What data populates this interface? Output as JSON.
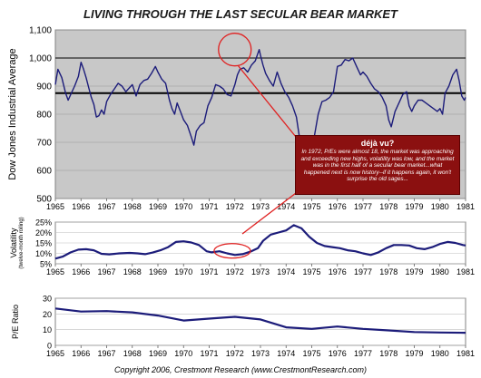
{
  "title": "LIVING THROUGH THE LAST SECULAR BEAR MARKET",
  "copyright": "Copyright 2006, Crestmont Research (www.CrestmontResearch.com)",
  "callout": {
    "heading": "déjà vu?",
    "body": "In 1972, P/Es were almost 18, the market was approaching and exceeding new highs, volatility was low, and the market was in the first half of a secular bear market...what happened next is now history--if it happens again, it won't surprise the old sages..."
  },
  "colors": {
    "line": "#1c1c7a",
    "highlight": "#e02020",
    "plot_bg": "#c8c8c8",
    "callout_bg": "#8b1010"
  },
  "chart_data": [
    {
      "type": "line",
      "title": "LIVING THROUGH THE LAST SECULAR BEAR MARKET",
      "ylabel": "Dow Jones Industrial Average",
      "xlim": [
        1965,
        1981
      ],
      "ylim": [
        500,
        1100
      ],
      "yticks": [
        "500",
        "600",
        "700",
        "800",
        "900",
        "1,000",
        "1,100"
      ],
      "xticks": [
        "1965",
        "1966",
        "1967",
        "1968",
        "1969",
        "1970",
        "1971",
        "1972",
        "1973",
        "1974",
        "1975",
        "1976",
        "1977",
        "1978",
        "1979",
        "1980",
        "1981"
      ],
      "reference_lines": [
        1000,
        875
      ],
      "grid": true,
      "highlight_circle_center": [
        1972.0,
        1030
      ],
      "x": [
        1965.0,
        1965.1,
        1965.25,
        1965.4,
        1965.5,
        1965.6,
        1965.75,
        1965.9,
        1966.0,
        1966.1,
        1966.2,
        1966.3,
        1966.4,
        1966.5,
        1966.6,
        1966.7,
        1966.8,
        1966.9,
        1967.0,
        1967.15,
        1967.3,
        1967.45,
        1967.6,
        1967.75,
        1967.9,
        1968.0,
        1968.15,
        1968.3,
        1968.45,
        1968.6,
        1968.75,
        1968.9,
        1969.0,
        1969.15,
        1969.3,
        1969.45,
        1969.55,
        1969.65,
        1969.75,
        1969.9,
        1970.0,
        1970.15,
        1970.3,
        1970.4,
        1970.5,
        1970.65,
        1970.8,
        1970.95,
        1971.1,
        1971.25,
        1971.4,
        1971.55,
        1971.7,
        1971.85,
        1972.0,
        1972.1,
        1972.2,
        1972.35,
        1972.5,
        1972.65,
        1972.8,
        1972.95,
        1973.0,
        1973.1,
        1973.2,
        1973.35,
        1973.5,
        1973.65,
        1973.8,
        1973.95,
        1974.1,
        1974.25,
        1974.4,
        1974.55,
        1974.7,
        1974.8,
        1974.9,
        1975.0,
        1975.1,
        1975.25,
        1975.4,
        1975.55,
        1975.7,
        1975.85,
        1976.0,
        1976.15,
        1976.3,
        1976.45,
        1976.6,
        1976.75,
        1976.9,
        1977.0,
        1977.15,
        1977.3,
        1977.45,
        1977.6,
        1977.75,
        1977.9,
        1978.0,
        1978.1,
        1978.25,
        1978.4,
        1978.55,
        1978.7,
        1978.8,
        1978.9,
        1979.0,
        1979.15,
        1979.3,
        1979.45,
        1979.6,
        1979.75,
        1979.9,
        1980.0,
        1980.1,
        1980.2,
        1980.35,
        1980.5,
        1980.65,
        1980.75,
        1980.85,
        1980.95,
        1981.0
      ],
      "y": [
        905,
        960,
        930,
        875,
        850,
        870,
        900,
        935,
        985,
        960,
        930,
        895,
        860,
        835,
        790,
        795,
        815,
        800,
        845,
        870,
        890,
        910,
        900,
        880,
        895,
        905,
        865,
        905,
        920,
        925,
        945,
        970,
        950,
        925,
        910,
        850,
        820,
        800,
        840,
        805,
        780,
        760,
        720,
        690,
        740,
        760,
        770,
        830,
        860,
        905,
        900,
        890,
        870,
        865,
        905,
        940,
        960,
        965,
        950,
        975,
        990,
        1030,
        1010,
        975,
        945,
        920,
        900,
        950,
        910,
        880,
        860,
        830,
        790,
        700,
        630,
        610,
        660,
        680,
        720,
        800,
        845,
        850,
        860,
        880,
        970,
        975,
        995,
        990,
        1000,
        970,
        940,
        950,
        935,
        910,
        890,
        880,
        860,
        830,
        780,
        755,
        810,
        840,
        870,
        880,
        830,
        810,
        830,
        850,
        850,
        840,
        830,
        820,
        810,
        820,
        800,
        875,
        900,
        940,
        960,
        920,
        865,
        850,
        860
      ]
    },
    {
      "type": "line",
      "ylabel": "Volatility",
      "ylabel_sub": "(twelve-month rolling)",
      "xlim": [
        1965,
        1981
      ],
      "ylim": [
        5,
        25
      ],
      "yticks": [
        "5%",
        "10%",
        "15%",
        "20%",
        "25%"
      ],
      "xticks": [
        "1965",
        "1966",
        "1967",
        "1968",
        "1969",
        "1970",
        "1971",
        "1972",
        "1973",
        "1974",
        "1975",
        "1976",
        "1977",
        "1978",
        "1979",
        "1980",
        "1981"
      ],
      "highlight_circle_center": [
        1971.9,
        11.2
      ],
      "x": [
        1965.0,
        1965.3,
        1965.6,
        1965.9,
        1966.2,
        1966.5,
        1966.8,
        1967.1,
        1967.5,
        1967.9,
        1968.2,
        1968.5,
        1968.8,
        1969.1,
        1969.4,
        1969.7,
        1970.0,
        1970.3,
        1970.6,
        1970.9,
        1971.1,
        1971.4,
        1971.7,
        1972.0,
        1972.3,
        1972.6,
        1972.9,
        1973.1,
        1973.4,
        1973.7,
        1974.0,
        1974.3,
        1974.6,
        1974.9,
        1975.2,
        1975.5,
        1975.8,
        1976.1,
        1976.4,
        1976.7,
        1977.0,
        1977.3,
        1977.6,
        1977.9,
        1978.2,
        1978.5,
        1978.8,
        1979.1,
        1979.4,
        1979.7,
        1980.0,
        1980.3,
        1980.6,
        1980.9,
        1981.0
      ],
      "y": [
        7.5,
        8.5,
        10.5,
        11.8,
        12.0,
        11.5,
        9.8,
        9.5,
        10.0,
        10.2,
        10.0,
        9.6,
        10.4,
        11.5,
        13.0,
        15.5,
        15.8,
        15.2,
        14.0,
        11.0,
        10.5,
        11.0,
        10.0,
        9.2,
        9.6,
        10.8,
        12.5,
        16.0,
        19.0,
        20.0,
        21.0,
        23.5,
        22.0,
        18.0,
        15.0,
        13.5,
        13.0,
        12.5,
        11.5,
        11.0,
        10.0,
        9.2,
        10.5,
        12.5,
        14.0,
        14.0,
        13.8,
        12.5,
        12.0,
        13.0,
        14.5,
        15.5,
        15.0,
        14.0,
        13.8
      ]
    },
    {
      "type": "line",
      "ylabel": "P/E Ratio",
      "xlim": [
        1965,
        1981
      ],
      "ylim": [
        0,
        30
      ],
      "yticks": [
        "0",
        "10",
        "20",
        "30"
      ],
      "xticks": [
        "1965",
        "1966",
        "1967",
        "1968",
        "1969",
        "1970",
        "1971",
        "1972",
        "1973",
        "1974",
        "1975",
        "1976",
        "1977",
        "1978",
        "1979",
        "1980",
        "1981"
      ],
      "x": [
        1965,
        1966,
        1967,
        1968,
        1969,
        1970,
        1971,
        1972,
        1973,
        1974,
        1975,
        1976,
        1977,
        1978,
        1979,
        1980,
        1981
      ],
      "y": [
        23.5,
        21.5,
        21.8,
        21.0,
        19.0,
        15.8,
        17.0,
        18.2,
        16.5,
        11.5,
        10.5,
        12.0,
        10.5,
        9.5,
        8.5,
        8.2,
        8.0
      ]
    }
  ]
}
